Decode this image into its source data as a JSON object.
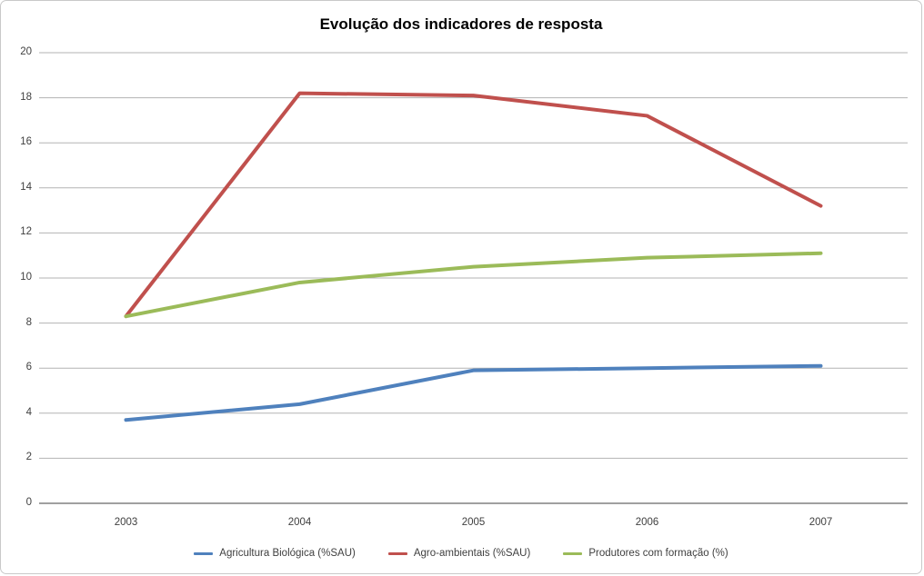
{
  "title": "Evolução dos indicadores de resposta",
  "chart_data": {
    "type": "line",
    "title": "Evolução dos indicadores de resposta",
    "categories": [
      "2003",
      "2004",
      "2005",
      "2006",
      "2007"
    ],
    "series": [
      {
        "name": "Agricultura Biológica (%SAU)",
        "color": "#4F81BD",
        "values": [
          3.7,
          4.4,
          5.9,
          6.0,
          6.1
        ]
      },
      {
        "name": "Agro-ambientais (%SAU)",
        "color": "#C0504D",
        "values": [
          8.3,
          18.2,
          18.1,
          17.2,
          13.2
        ]
      },
      {
        "name": "Produtores com formação (%)",
        "color": "#9BBB59",
        "values": [
          8.3,
          9.8,
          10.5,
          10.9,
          11.1
        ]
      }
    ],
    "xlabel": "",
    "ylabel": "",
    "ylim": [
      0,
      20
    ],
    "ytick_step": 2,
    "grid": "horizontal",
    "legend_position": "bottom"
  },
  "style": {
    "gridline_color": "#b3b3b3",
    "axis_line_color": "#808080",
    "tick_text_color": "#3f3f3f",
    "frame_border_color": "#c9c9c9",
    "background": "#ffffff"
  }
}
